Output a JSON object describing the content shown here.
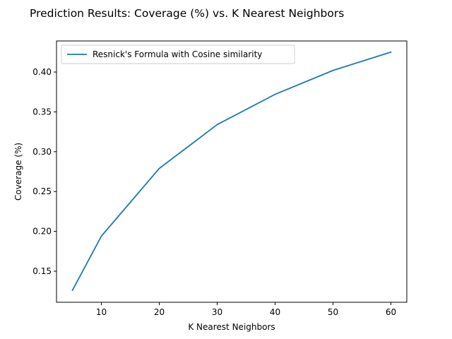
{
  "chart_data": {
    "type": "line",
    "title": "Prediction Results: Coverage (%) vs.  K Nearest Neighbors",
    "xlabel": "K Nearest Neighbors",
    "ylabel": "Coverage (%)",
    "xlim": [
      2.25,
      62.75
    ],
    "ylim": [
      0.111,
      0.439
    ],
    "xticks": [
      10,
      20,
      30,
      40,
      50,
      60
    ],
    "yticks": [
      0.15,
      0.2,
      0.25,
      0.3,
      0.35,
      0.4
    ],
    "grid": false,
    "legend_position": "top-left",
    "series": [
      {
        "name": "Resnick's Formula with Cosine similarity",
        "color": "#1f77b4",
        "x": [
          5,
          10,
          20,
          30,
          40,
          50,
          60
        ],
        "y": [
          0.126,
          0.194,
          0.279,
          0.334,
          0.372,
          0.402,
          0.425
        ]
      }
    ]
  }
}
